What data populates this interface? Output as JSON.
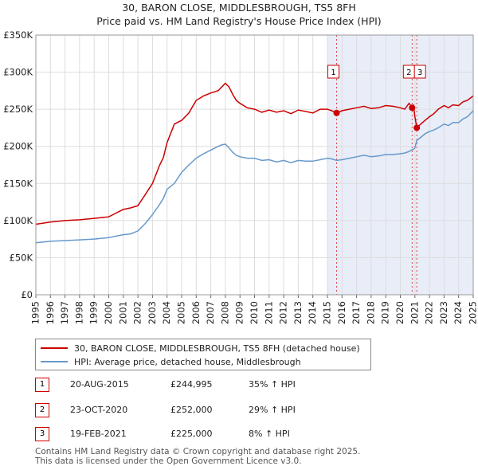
{
  "chart_data": {
    "type": "line",
    "title": "30, BARON CLOSE, MIDDLESBROUGH, TS5 8FH",
    "subtitle": "Price paid vs. HM Land Registry's House Price Index (HPI)",
    "x_range": [
      1995,
      2025
    ],
    "ylim": [
      0,
      350000
    ],
    "y_ticks": [
      0,
      50000,
      100000,
      150000,
      200000,
      250000,
      300000,
      350000
    ],
    "y_tick_labels": [
      "£0",
      "£50K",
      "£100K",
      "£150K",
      "£200K",
      "£250K",
      "£300K",
      "£350K"
    ],
    "x_ticks": [
      1995,
      1996,
      1997,
      1998,
      1999,
      2000,
      2001,
      2002,
      2003,
      2004,
      2005,
      2006,
      2007,
      2008,
      2009,
      2010,
      2011,
      2012,
      2013,
      2014,
      2015,
      2016,
      2017,
      2018,
      2019,
      2020,
      2021,
      2022,
      2023,
      2024,
      2025
    ],
    "x_tick_labels": [
      "1995",
      "1996",
      "1997",
      "1998",
      "1999",
      "2000",
      "2001",
      "2002",
      "2003",
      "2004",
      "2005",
      "2006",
      "2007",
      "2008",
      "2009",
      "2010",
      "2011",
      "2012",
      "2013",
      "2014",
      "2015",
      "2016",
      "2017",
      "2018",
      "2019",
      "2020",
      "2021",
      "2022",
      "2023",
      "2024",
      "2025"
    ],
    "shaded_region": [
      2015.0,
      2025
    ],
    "series": [
      {
        "name": "30, BARON CLOSE, MIDDLESBROUGH, TS5 8FH (detached house)",
        "color": "#cc0000",
        "x": [
          1995.0,
          1996.0,
          1997.0,
          1998.0,
          1999.0,
          2000.0,
          2000.5,
          2001.0,
          2001.5,
          2002.0,
          2002.5,
          2003.0,
          2003.5,
          2003.75,
          2004.0,
          2004.5,
          2005.0,
          2005.5,
          2006.0,
          2006.5,
          2007.0,
          2007.5,
          2007.75,
          2008.0,
          2008.25,
          2008.5,
          2008.75,
          2009.0,
          2009.25,
          2009.5,
          2010.0,
          2010.5,
          2011.0,
          2011.5,
          2012.0,
          2012.5,
          2013.0,
          2013.5,
          2014.0,
          2014.5,
          2015.0,
          2015.3,
          2015.63,
          2016.0,
          2016.5,
          2017.0,
          2017.5,
          2018.0,
          2018.5,
          2019.0,
          2019.5,
          2020.0,
          2020.3,
          2020.6,
          2020.81,
          2020.9,
          2021.0,
          2021.13,
          2021.4,
          2021.7,
          2022.0,
          2022.3,
          2022.6,
          2023.0,
          2023.3,
          2023.6,
          2024.0,
          2024.3,
          2024.6,
          2025.0
        ],
        "values": [
          95000,
          98000,
          100000,
          101000,
          103000,
          105000,
          110000,
          115000,
          117000,
          120000,
          135000,
          150000,
          175000,
          185000,
          205000,
          230000,
          235000,
          245000,
          262000,
          268000,
          272000,
          275000,
          280000,
          285000,
          280000,
          270000,
          262000,
          258000,
          255000,
          252000,
          250000,
          246000,
          249000,
          246000,
          248000,
          244000,
          249000,
          247000,
          245000,
          250000,
          250000,
          248000,
          244995,
          248000,
          250000,
          252000,
          254000,
          251000,
          252000,
          255000,
          254000,
          252000,
          250000,
          258000,
          252000,
          255000,
          240000,
          225000,
          230000,
          235000,
          240000,
          244000,
          250000,
          255000,
          252000,
          256000,
          255000,
          260000,
          262000,
          268000
        ]
      },
      {
        "name": "HPI: Average price, detached house, Middlesbrough",
        "color": "#6699cc",
        "x": [
          1995.0,
          1996.0,
          1997.0,
          1998.0,
          1999.0,
          2000.0,
          2000.5,
          2001.0,
          2001.5,
          2002.0,
          2002.5,
          2003.0,
          2003.5,
          2003.75,
          2004.0,
          2004.5,
          2005.0,
          2005.5,
          2006.0,
          2006.5,
          2007.0,
          2007.5,
          2007.75,
          2008.0,
          2008.25,
          2008.5,
          2008.75,
          2009.0,
          2009.25,
          2009.5,
          2010.0,
          2010.5,
          2011.0,
          2011.5,
          2012.0,
          2012.5,
          2013.0,
          2013.5,
          2014.0,
          2014.5,
          2015.0,
          2015.3,
          2015.63,
          2016.0,
          2016.5,
          2017.0,
          2017.5,
          2018.0,
          2018.5,
          2019.0,
          2019.5,
          2020.0,
          2020.3,
          2020.6,
          2020.81,
          2020.9,
          2021.0,
          2021.13,
          2021.4,
          2021.7,
          2022.0,
          2022.3,
          2022.6,
          2023.0,
          2023.3,
          2023.6,
          2024.0,
          2024.3,
          2024.6,
          2025.0
        ],
        "values": [
          70000,
          72000,
          73000,
          74000,
          75000,
          77000,
          79000,
          81000,
          82000,
          86000,
          96000,
          108000,
          122000,
          130000,
          142000,
          150000,
          165000,
          175000,
          184000,
          190000,
          195000,
          200000,
          202000,
          203000,
          198000,
          192000,
          188000,
          186000,
          185000,
          184000,
          184000,
          181000,
          182000,
          179000,
          181000,
          178000,
          181000,
          180000,
          180000,
          182000,
          184000,
          183000,
          181000,
          182000,
          184000,
          186000,
          188000,
          186000,
          187000,
          189000,
          189000,
          190000,
          191000,
          193000,
          195500,
          196000,
          198000,
          208000,
          212000,
          217000,
          220000,
          222000,
          225000,
          230000,
          228000,
          232000,
          232000,
          237000,
          240000,
          248000
        ]
      }
    ],
    "transactions": [
      {
        "num": "1",
        "date": "20-AUG-2015",
        "x": 2015.63,
        "price": 244995,
        "price_label": "£244,995",
        "hpi": "35% ↑ HPI"
      },
      {
        "num": "2",
        "date": "23-OCT-2020",
        "x": 2020.81,
        "price": 252000,
        "price_label": "£252,000",
        "hpi": "29% ↑ HPI"
      },
      {
        "num": "3",
        "date": "19-FEB-2021",
        "x": 2021.13,
        "price": 225000,
        "price_label": "£225,000",
        "hpi": "8% ↑ HPI"
      }
    ]
  },
  "legend": {
    "property_label": "30, BARON CLOSE, MIDDLESBROUGH, TS5 8FH (detached house)",
    "hpi_label": "HPI: Average price, detached house, Middlesbrough",
    "property_color": "#cc0000",
    "hpi_color": "#6699cc"
  },
  "footer": {
    "line1": "Contains HM Land Registry data © Crown copyright and database right 2025.",
    "line2": "This data is licensed under the Open Government Licence v3.0."
  }
}
